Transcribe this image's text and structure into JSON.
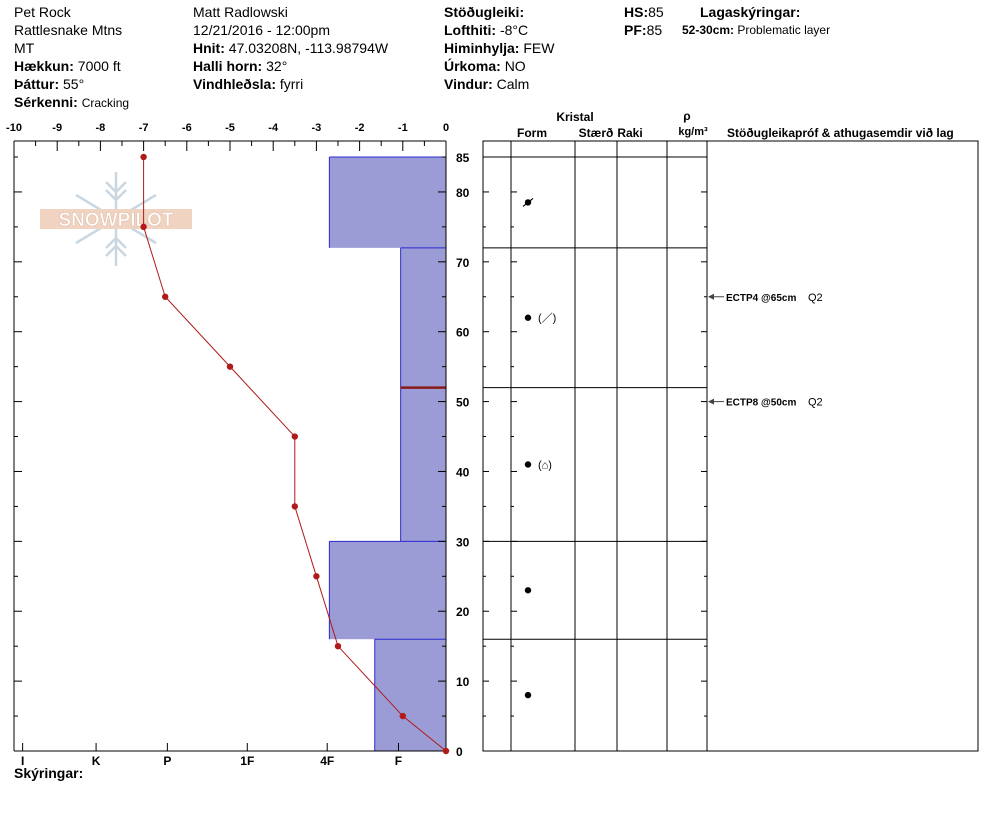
{
  "header": {
    "col1": {
      "location": "Pet Rock",
      "range": "Rattlesnake Mtns",
      "state": "MT",
      "elevation_label": "Hækkun:",
      "elevation_value": "7000 ft",
      "aspect_label": "Þáttur:",
      "aspect_value": "55°",
      "features_label": "Sérkenni:",
      "features_value": "Cracking"
    },
    "col2": {
      "observer": "Matt Radlowski",
      "datetime": "12/21/2016 - 12:00pm",
      "coords_label": "Hnit:",
      "coords_value": "47.03208N, -113.98794W",
      "slope_label": "Halli horn:",
      "slope_value": "32°",
      "wind_loading_label": "Vindhleðsla:",
      "wind_loading_value": "fyrri"
    },
    "col3": {
      "stability_label": "Stöðugleiki:",
      "airtemp_label": "Lofthiti:",
      "airtemp_value": "-8°C",
      "sky_label": "Himinhylja:",
      "sky_value": "FEW",
      "precip_label": "Úrkoma:",
      "precip_value": "NO",
      "wind_label": "Vindur:",
      "wind_value": "Calm"
    },
    "col4": {
      "hs_label": "HS:",
      "hs_value": "85",
      "pf_label": "PF:",
      "pf_value": "85",
      "layer_notes_label": "Lagaskýringar:",
      "layer_note_range": "52-30cm:",
      "layer_note_text": "Problematic layer"
    }
  },
  "logo_text": "SNOWPILOT",
  "footer": {
    "notes_label": "Skýringar:"
  },
  "columns": {
    "crystal": "Kristal",
    "form": "Form",
    "size": "Stærð",
    "moisture": "Raki",
    "density_symbol": "ρ",
    "density_unit": "kg/m³",
    "tests": "Stöðugleikapróf & athugasemdir við lag"
  },
  "tests": [
    {
      "depth": 65,
      "text": "ECTP4 @65cm",
      "quality": "Q2"
    },
    {
      "depth": 50,
      "text": "ECTP8 @50cm",
      "quality": "Q2"
    }
  ],
  "colors": {
    "hardness_fill": "#9b9bd6",
    "hardness_edge": "#2b2bd0",
    "temp_line": "#b01a1a",
    "problem_layer": "#8b1a1a"
  },
  "chart_data": {
    "type": "line",
    "temp_axis": {
      "min": -10,
      "max": 0,
      "ticks": [
        -10,
        -9,
        -8,
        -7,
        -6,
        -5,
        -4,
        -3,
        -2,
        -1,
        0
      ]
    },
    "depth_axis": {
      "min": 0,
      "max": 85,
      "ticks": [
        0,
        10,
        20,
        30,
        40,
        50,
        60,
        70,
        80,
        85
      ]
    },
    "hardness_labels": [
      "I",
      "K",
      "P",
      "1F",
      "4F",
      "F"
    ],
    "temperature_profile": [
      {
        "depth": 85,
        "temp": -7.0
      },
      {
        "depth": 75,
        "temp": -7.0
      },
      {
        "depth": 65,
        "temp": -6.5
      },
      {
        "depth": 55,
        "temp": -5.0
      },
      {
        "depth": 45,
        "temp": -3.5
      },
      {
        "depth": 35,
        "temp": -3.5
      },
      {
        "depth": 25,
        "temp": -3.0
      },
      {
        "depth": 15,
        "temp": -2.5
      },
      {
        "depth": 5,
        "temp": -1.0
      },
      {
        "depth": 0,
        "temp": 0.0
      }
    ],
    "layers": [
      {
        "top": 85,
        "bottom": 72,
        "hand_hardness": "4F",
        "width_temp": 2.7,
        "form": "dot-cross",
        "symbol": ""
      },
      {
        "top": 72,
        "bottom": 52,
        "hand_hardness": "F",
        "width_temp": 1.05,
        "form": "dot",
        "symbol": "(／)"
      },
      {
        "top": 52,
        "bottom": 30,
        "hand_hardness": "F",
        "width_temp": 1.05,
        "form": "dot",
        "symbol": "(⌂)"
      },
      {
        "top": 30,
        "bottom": 16,
        "hand_hardness": "4F",
        "width_temp": 2.7,
        "form": "dot",
        "symbol": ""
      },
      {
        "top": 16,
        "bottom": 0,
        "hand_hardness": "4F-",
        "width_temp": 1.65,
        "form": "dot",
        "symbol": ""
      }
    ],
    "problematic_layer": {
      "depth": 52
    }
  }
}
